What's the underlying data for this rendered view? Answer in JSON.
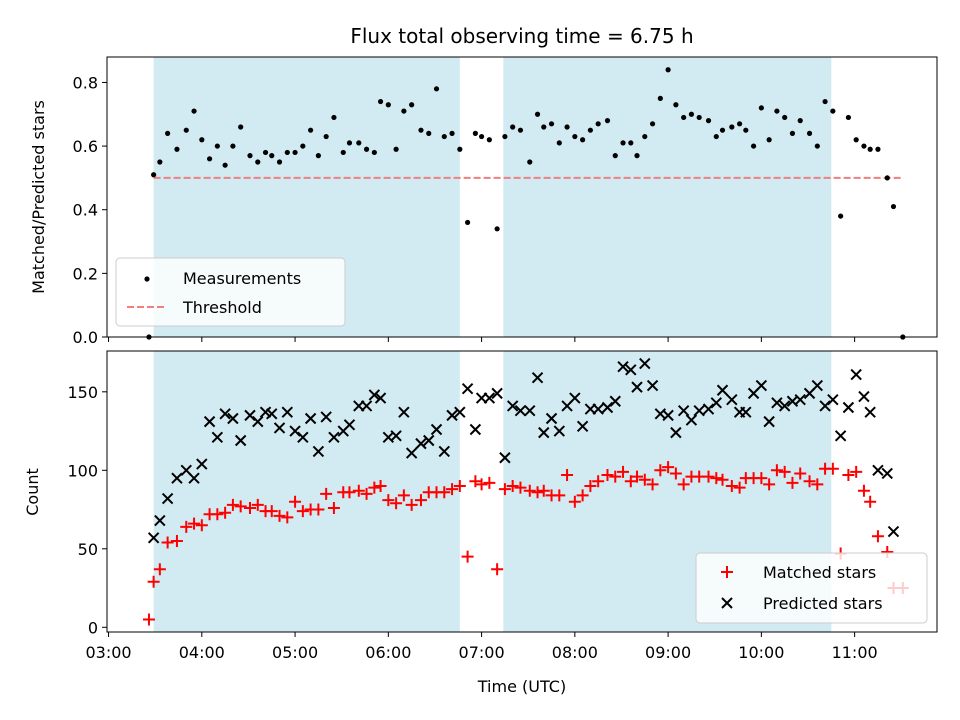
{
  "chart_data": [
    {
      "type": "scatter",
      "title": "Flux total observing time = 6.75 h",
      "xlabel": "",
      "ylabel": "Matched/Predicted stars",
      "xlim": [
        "02:59",
        "11:53"
      ],
      "ylim": [
        0,
        0.88
      ],
      "yticks": [
        "0.0",
        "0.2",
        "0.4",
        "0.6",
        "0.8"
      ],
      "ytick_values": [
        0,
        0.2,
        0.4,
        0.6,
        0.8
      ],
      "grid": false,
      "legend": "lower-left",
      "shaded_spans": [
        [
          "03:29",
          "06:46"
        ],
        [
          "07:14",
          "10:45"
        ]
      ],
      "shade_color": "#add8e6",
      "threshold": {
        "name": "Threshold",
        "value": 0.5,
        "x_range": [
          "03:29",
          "11:30"
        ],
        "color": "#f08080"
      },
      "series": [
        {
          "name": "Measurements",
          "color": "#000000",
          "x": [
            "03:26",
            "03:29",
            "03:33",
            "03:38",
            "03:44",
            "03:50",
            "03:55",
            "04:00",
            "04:05",
            "04:10",
            "04:15",
            "04:20",
            "04:25",
            "04:31",
            "04:36",
            "04:41",
            "04:45",
            "04:50",
            "04:55",
            "05:00",
            "05:05",
            "05:10",
            "05:15",
            "05:20",
            "05:25",
            "05:31",
            "05:35",
            "05:41",
            "05:46",
            "05:51",
            "05:55",
            "06:00",
            "06:05",
            "06:10",
            "06:15",
            "06:21",
            "06:26",
            "06:31",
            "06:36",
            "06:41",
            "06:46",
            "06:51",
            "06:56",
            "07:00",
            "07:05",
            "07:10",
            "07:15",
            "07:20",
            "07:25",
            "07:31",
            "07:36",
            "07:40",
            "07:45",
            "07:50",
            "07:55",
            "08:00",
            "08:05",
            "08:10",
            "08:15",
            "08:21",
            "08:26",
            "08:31",
            "08:36",
            "08:40",
            "08:45",
            "08:50",
            "08:55",
            "09:00",
            "09:05",
            "09:10",
            "09:15",
            "09:20",
            "09:26",
            "09:31",
            "09:35",
            "09:41",
            "09:46",
            "09:50",
            "09:55",
            "10:00",
            "10:05",
            "10:10",
            "10:15",
            "10:20",
            "10:25",
            "10:31",
            "10:36",
            "10:41",
            "10:46",
            "10:51",
            "10:56",
            "11:01",
            "11:06",
            "11:10",
            "11:15",
            "11:21",
            "11:25",
            "11:31"
          ],
          "y": [
            0.0,
            0.51,
            0.55,
            0.64,
            0.59,
            0.65,
            0.71,
            0.62,
            0.56,
            0.6,
            0.54,
            0.6,
            0.66,
            0.57,
            0.55,
            0.58,
            0.57,
            0.55,
            0.58,
            0.58,
            0.6,
            0.65,
            0.57,
            0.63,
            0.69,
            0.58,
            0.61,
            0.61,
            0.59,
            0.58,
            0.74,
            0.73,
            0.59,
            0.71,
            0.73,
            0.65,
            0.64,
            0.78,
            0.63,
            0.64,
            0.59,
            0.36,
            0.64,
            0.63,
            0.62,
            0.34,
            0.63,
            0.66,
            0.65,
            0.55,
            0.7,
            0.66,
            0.67,
            0.61,
            0.66,
            0.63,
            0.62,
            0.65,
            0.67,
            0.68,
            0.57,
            0.61,
            0.61,
            0.57,
            0.63,
            0.67,
            0.75,
            0.84,
            0.73,
            0.69,
            0.7,
            0.69,
            0.68,
            0.63,
            0.65,
            0.66,
            0.67,
            0.65,
            0.6,
            0.72,
            0.62,
            0.71,
            0.69,
            0.64,
            0.68,
            0.64,
            0.6,
            0.74,
            0.71,
            0.38,
            0.69,
            0.62,
            0.6,
            0.59,
            0.59,
            0.5,
            0.41,
            0.0
          ]
        }
      ]
    },
    {
      "type": "scatter",
      "title": "",
      "xlabel": "Time (UTC)",
      "ylabel": "Count",
      "xlim": [
        "02:59",
        "11:53"
      ],
      "xticks": [
        "03:00",
        "04:00",
        "05:00",
        "06:00",
        "07:00",
        "08:00",
        "09:00",
        "10:00",
        "11:00"
      ],
      "ylim": [
        -3,
        176
      ],
      "yticks": [
        "0",
        "50",
        "100",
        "150"
      ],
      "ytick_values": [
        0,
        50,
        100,
        150
      ],
      "grid": false,
      "legend": "lower-right",
      "shaded_spans": [
        [
          "03:29",
          "06:46"
        ],
        [
          "07:14",
          "10:45"
        ]
      ],
      "shade_color": "#add8e6",
      "series": [
        {
          "name": "Matched stars",
          "marker": "plus",
          "color": "#ff0000",
          "x": [
            "03:26",
            "03:29",
            "03:33",
            "03:38",
            "03:44",
            "03:50",
            "03:55",
            "04:00",
            "04:05",
            "04:10",
            "04:15",
            "04:20",
            "04:25",
            "04:31",
            "04:36",
            "04:41",
            "04:45",
            "04:50",
            "04:55",
            "05:00",
            "05:05",
            "05:10",
            "05:15",
            "05:20",
            "05:25",
            "05:31",
            "05:35",
            "05:41",
            "05:46",
            "05:51",
            "05:55",
            "06:00",
            "06:05",
            "06:10",
            "06:15",
            "06:21",
            "06:26",
            "06:31",
            "06:36",
            "06:41",
            "06:46",
            "06:51",
            "06:56",
            "07:00",
            "07:05",
            "07:10",
            "07:15",
            "07:20",
            "07:25",
            "07:31",
            "07:36",
            "07:40",
            "07:45",
            "07:50",
            "07:55",
            "08:00",
            "08:05",
            "08:10",
            "08:15",
            "08:21",
            "08:26",
            "08:31",
            "08:36",
            "08:40",
            "08:45",
            "08:50",
            "08:55",
            "09:00",
            "09:05",
            "09:10",
            "09:15",
            "09:20",
            "09:26",
            "09:31",
            "09:35",
            "09:41",
            "09:46",
            "09:50",
            "09:55",
            "10:00",
            "10:05",
            "10:10",
            "10:15",
            "10:20",
            "10:25",
            "10:31",
            "10:36",
            "10:41",
            "10:46",
            "10:51",
            "10:56",
            "11:01",
            "11:06",
            "11:10",
            "11:15",
            "11:21",
            "11:25",
            "11:31"
          ],
          "y": [
            5,
            29,
            37,
            54,
            55,
            64,
            66,
            65,
            72,
            72,
            73,
            78,
            77,
            76,
            78,
            74,
            74,
            71,
            70,
            80,
            74,
            75,
            75,
            85,
            76,
            86,
            86,
            87,
            85,
            89,
            90,
            81,
            79,
            84,
            78,
            81,
            86,
            86,
            86,
            88,
            90,
            45,
            93,
            91,
            92,
            37,
            88,
            90,
            89,
            87,
            86,
            87,
            84,
            84,
            97,
            80,
            84,
            90,
            93,
            97,
            96,
            99,
            93,
            96,
            94,
            91,
            100,
            102,
            98,
            91,
            96,
            96,
            96,
            95,
            94,
            90,
            89,
            95,
            95,
            95,
            91,
            100,
            99,
            92,
            98,
            93,
            91,
            101,
            101,
            47,
            97,
            99,
            87,
            80,
            58,
            48,
            25,
            25
          ]
        },
        {
          "name": "Predicted stars",
          "marker": "x",
          "color": "#000000",
          "x": [
            "03:29",
            "03:33",
            "03:38",
            "03:44",
            "03:50",
            "03:55",
            "04:00",
            "04:05",
            "04:10",
            "04:15",
            "04:20",
            "04:25",
            "04:31",
            "04:36",
            "04:41",
            "04:45",
            "04:50",
            "04:55",
            "05:00",
            "05:05",
            "05:10",
            "05:15",
            "05:20",
            "05:25",
            "05:31",
            "05:35",
            "05:41",
            "05:46",
            "05:51",
            "05:55",
            "06:00",
            "06:05",
            "06:10",
            "06:15",
            "06:21",
            "06:26",
            "06:31",
            "06:36",
            "06:41",
            "06:46",
            "06:51",
            "06:56",
            "07:00",
            "07:05",
            "07:10",
            "07:15",
            "07:20",
            "07:25",
            "07:31",
            "07:36",
            "07:40",
            "07:45",
            "07:50",
            "07:55",
            "08:00",
            "08:05",
            "08:10",
            "08:15",
            "08:21",
            "08:26",
            "08:31",
            "08:36",
            "08:40",
            "08:45",
            "08:50",
            "08:55",
            "09:00",
            "09:05",
            "09:10",
            "09:15",
            "09:20",
            "09:26",
            "09:31",
            "09:35",
            "09:41",
            "09:46",
            "09:50",
            "09:55",
            "10:00",
            "10:05",
            "10:10",
            "10:15",
            "10:20",
            "10:25",
            "10:31",
            "10:36",
            "10:41",
            "10:46",
            "10:51",
            "10:56",
            "11:01",
            "11:06",
            "11:10",
            "11:15",
            "11:21",
            "11:25"
          ],
          "y": [
            57,
            68,
            82,
            95,
            100,
            95,
            104,
            131,
            121,
            136,
            133,
            119,
            135,
            131,
            137,
            136,
            127,
            137,
            125,
            121,
            133,
            112,
            134,
            121,
            125,
            129,
            141,
            141,
            148,
            146,
            121,
            122,
            137,
            111,
            117,
            119,
            126,
            112,
            135,
            137,
            152,
            126,
            146,
            146,
            149,
            108,
            141,
            138,
            138,
            159,
            124,
            133,
            125,
            141,
            146,
            128,
            139,
            139,
            140,
            144,
            166,
            164,
            153,
            168,
            154,
            136,
            135,
            124,
            138,
            132,
            138,
            139,
            143,
            151,
            145,
            137,
            137,
            149,
            154,
            131,
            143,
            141,
            144,
            145,
            149,
            154,
            141,
            145,
            122,
            140,
            161,
            147,
            137,
            100,
            98,
            61
          ]
        }
      ]
    }
  ]
}
